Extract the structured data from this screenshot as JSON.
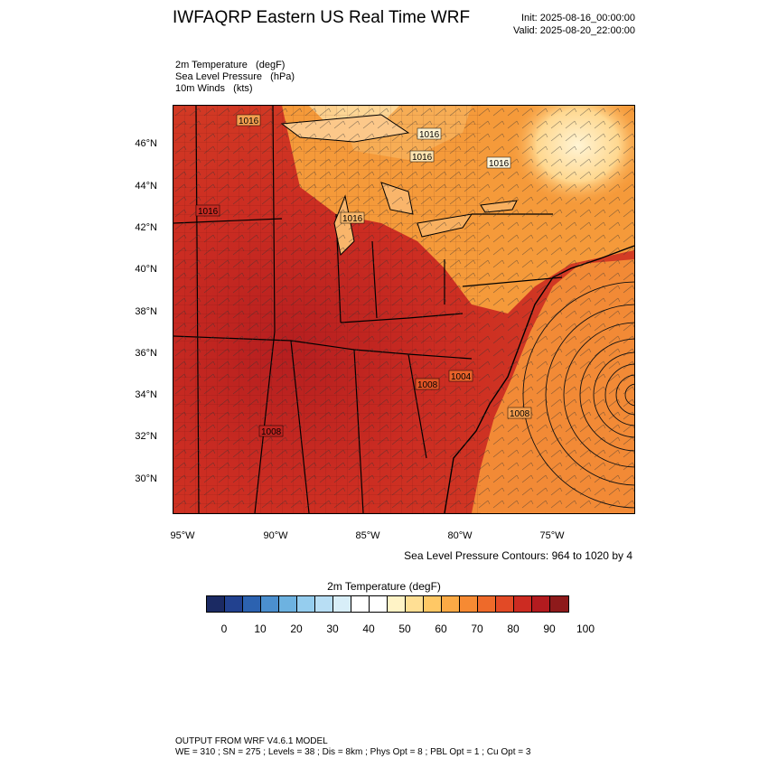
{
  "header": {
    "title": "IWFAQRP Eastern US Real Time WRF",
    "init": "Init: 2025-08-16_00:00:00",
    "valid": "Valid: 2025-08-20_22:00:00"
  },
  "fields": [
    "2m Temperature   (degF)",
    "Sea Level Pressure   (hPa)",
    "10m Winds   (kts)"
  ],
  "map": {
    "lat_labels": [
      "46°N",
      "44°N",
      "42°N",
      "40°N",
      "38°N",
      "36°N",
      "34°N",
      "32°N",
      "30°N"
    ],
    "lon_labels": [
      "95°W",
      "90°W",
      "85°W",
      "80°W",
      "75°W"
    ],
    "isobar_labels": [
      "1016",
      "1016",
      "1016",
      "1016",
      "1016",
      "1016",
      "1004",
      "1008",
      "1008",
      "1008"
    ],
    "hurricane_center": "offshore east of Outer Banks"
  },
  "contour_note": "Sea Level Pressure Contours: 964 to 1020 by 4",
  "colorbar": {
    "title": "2m Temperature  (degF)",
    "colors": [
      "#1b2a63",
      "#22418f",
      "#2c62b0",
      "#4b8fce",
      "#6db2e0",
      "#95cdee",
      "#b8def4",
      "#d8eef8",
      "#ffffff",
      "#ffffff",
      "#fff3c6",
      "#ffdf94",
      "#ffc865",
      "#fbaa45",
      "#f68a33",
      "#ee6a2a",
      "#e24a26",
      "#cc2b22",
      "#b31b1f",
      "#8e1a1b"
    ],
    "labels": [
      "0",
      "10",
      "20",
      "30",
      "40",
      "50",
      "60",
      "70",
      "80",
      "90",
      "100"
    ]
  },
  "footer": {
    "line1": "OUTPUT FROM WRF V4.6.1 MODEL",
    "line2": "WE = 310 ; SN = 275 ; Levels = 38 ; Dis = 8km ; Phys Opt = 8 ; PBL Opt = 1 ; Cu Opt = 3"
  }
}
